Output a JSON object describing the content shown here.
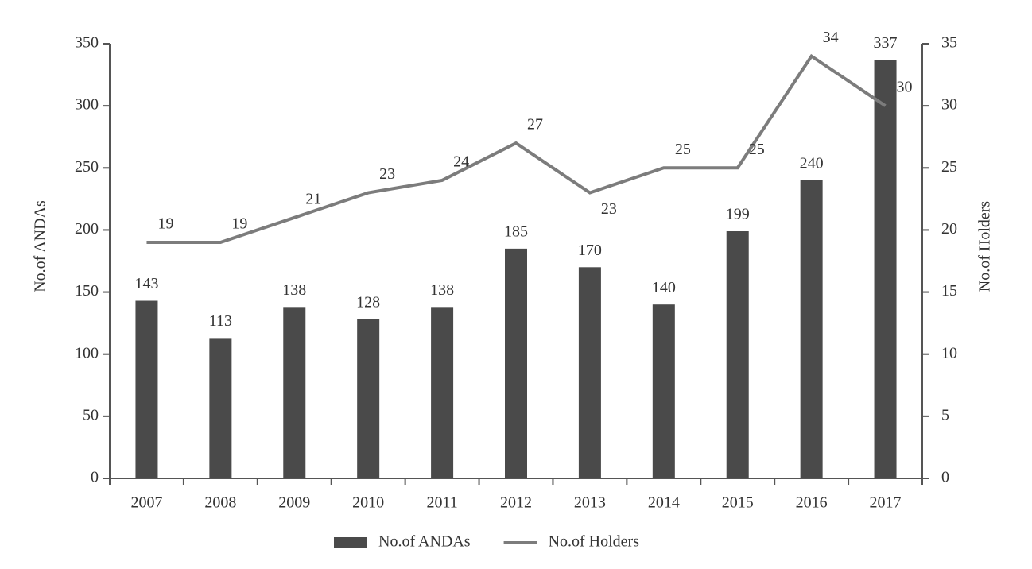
{
  "chart_data": {
    "type": "bar",
    "categories": [
      "2007",
      "2008",
      "2009",
      "2010",
      "2011",
      "2012",
      "2013",
      "2014",
      "2015",
      "2016",
      "2017"
    ],
    "series": [
      {
        "name": "No.of ANDAs",
        "type": "bar",
        "color": "#4a4a4a",
        "values": [
          143,
          113,
          138,
          128,
          138,
          185,
          170,
          140,
          199,
          240,
          337
        ]
      },
      {
        "name": "No.of Holders",
        "type": "line",
        "axis": "y2",
        "color": "#7c7c7c",
        "values": [
          19,
          19,
          21,
          23,
          24,
          27,
          23,
          25,
          25,
          34,
          30
        ]
      }
    ],
    "ylabel": "No.of ANDAs",
    "y2label": "No.of Holders",
    "ylim": [
      0,
      350
    ],
    "yticks": [
      0,
      50,
      100,
      150,
      200,
      250,
      300,
      350
    ],
    "y2lim": [
      0,
      35
    ],
    "y2ticks": [
      0,
      5,
      10,
      15,
      20,
      25,
      30,
      35
    ],
    "legend": "bottom"
  }
}
